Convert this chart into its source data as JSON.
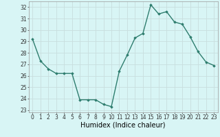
{
  "x": [
    0,
    1,
    2,
    3,
    4,
    5,
    6,
    7,
    8,
    9,
    10,
    11,
    12,
    13,
    14,
    15,
    16,
    17,
    18,
    19,
    20,
    21,
    22,
    23
  ],
  "y": [
    29.2,
    27.3,
    26.6,
    26.2,
    26.2,
    26.2,
    23.9,
    23.9,
    23.9,
    23.5,
    23.3,
    26.4,
    27.8,
    29.3,
    29.7,
    32.2,
    31.4,
    31.6,
    30.7,
    30.5,
    29.4,
    28.1,
    27.2,
    26.9
  ],
  "line_color": "#2e7d6e",
  "marker": "D",
  "markersize": 1.8,
  "linewidth": 1.0,
  "xlabel": "Humidex (Indice chaleur)",
  "xlabel_fontsize": 7,
  "ylabel_ticks": [
    23,
    24,
    25,
    26,
    27,
    28,
    29,
    30,
    31,
    32
  ],
  "xlim": [
    -0.5,
    23.5
  ],
  "ylim": [
    22.8,
    32.5
  ],
  "bg_color": "#d8f5f5",
  "grid_color": "#c8dede",
  "tick_fontsize": 5.5
}
